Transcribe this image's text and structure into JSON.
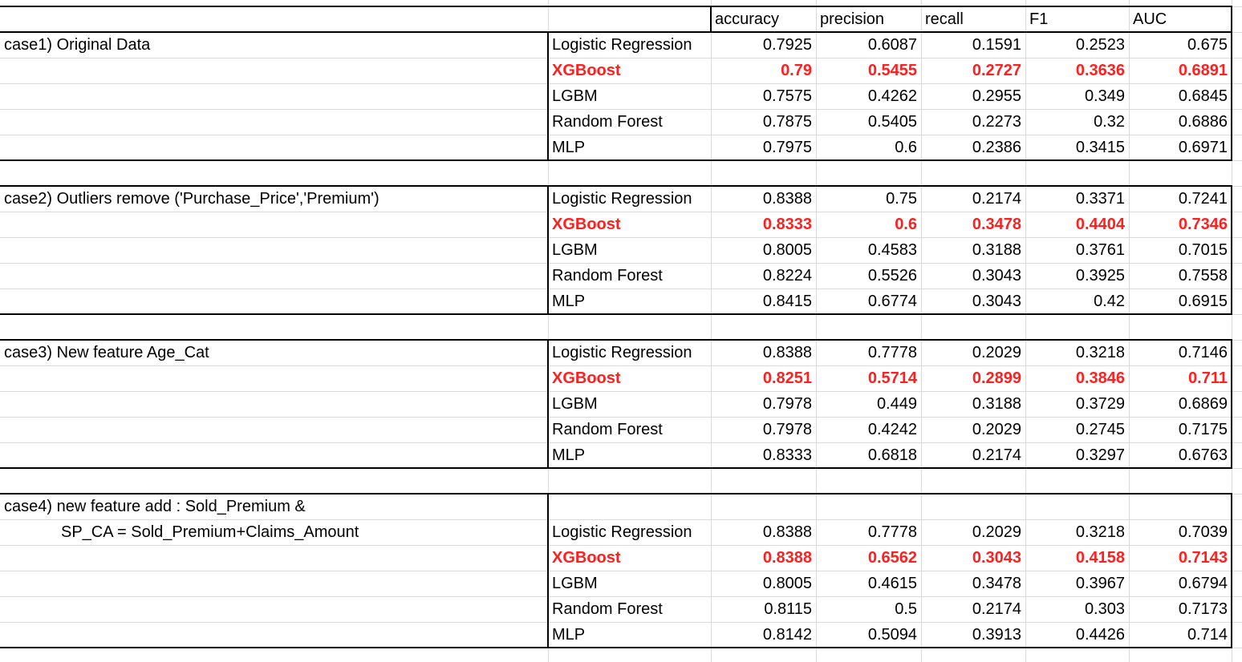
{
  "headers": [
    "",
    "",
    "accuracy",
    "precision",
    "recall",
    "F1",
    "AUC"
  ],
  "groups": [
    {
      "case_lines": [
        "case1) Original Data"
      ],
      "rows": [
        {
          "model": "Logistic Regression",
          "values": [
            "0.7925",
            "0.6087",
            "0.1591",
            "0.2523",
            "0.675"
          ],
          "highlight": false
        },
        {
          "model": "XGBoost",
          "values": [
            "0.79",
            "0.5455",
            "0.2727",
            "0.3636",
            "0.6891"
          ],
          "highlight": true
        },
        {
          "model": "LGBM",
          "values": [
            "0.7575",
            "0.4262",
            "0.2955",
            "0.349",
            "0.6845"
          ],
          "highlight": false
        },
        {
          "model": "Random Forest",
          "values": [
            "0.7875",
            "0.5405",
            "0.2273",
            "0.32",
            "0.6886"
          ],
          "highlight": false
        },
        {
          "model": "MLP",
          "values": [
            "0.7975",
            "0.6",
            "0.2386",
            "0.3415",
            "0.6971"
          ],
          "highlight": false
        }
      ]
    },
    {
      "case_lines": [
        "case2) Outliers remove ('Purchase_Price','Premium')"
      ],
      "rows": [
        {
          "model": "Logistic Regression",
          "values": [
            "0.8388",
            "0.75",
            "0.2174",
            "0.3371",
            "0.7241"
          ],
          "highlight": false
        },
        {
          "model": "XGBoost",
          "values": [
            "0.8333",
            "0.6",
            "0.3478",
            "0.4404",
            "0.7346"
          ],
          "highlight": true
        },
        {
          "model": "LGBM",
          "values": [
            "0.8005",
            "0.4583",
            "0.3188",
            "0.3761",
            "0.7015"
          ],
          "highlight": false
        },
        {
          "model": "Random Forest",
          "values": [
            "0.8224",
            "0.5526",
            "0.3043",
            "0.3925",
            "0.7558"
          ],
          "highlight": false
        },
        {
          "model": "MLP",
          "values": [
            "0.8415",
            "0.6774",
            "0.3043",
            "0.42",
            "0.6915"
          ],
          "highlight": false
        }
      ]
    },
    {
      "case_lines": [
        "case3) New feature Age_Cat"
      ],
      "rows": [
        {
          "model": "Logistic Regression",
          "values": [
            "0.8388",
            "0.7778",
            "0.2029",
            "0.3218",
            "0.7146"
          ],
          "highlight": false
        },
        {
          "model": "XGBoost",
          "values": [
            "0.8251",
            "0.5714",
            "0.2899",
            "0.3846",
            "0.711"
          ],
          "highlight": true
        },
        {
          "model": "LGBM",
          "values": [
            "0.7978",
            "0.449",
            "0.3188",
            "0.3729",
            "0.6869"
          ],
          "highlight": false
        },
        {
          "model": "Random Forest",
          "values": [
            "0.7978",
            "0.4242",
            "0.2029",
            "0.2745",
            "0.7175"
          ],
          "highlight": false
        },
        {
          "model": "MLP",
          "values": [
            "0.8333",
            "0.6818",
            "0.2174",
            "0.3297",
            "0.6763"
          ],
          "highlight": false
        }
      ]
    },
    {
      "case_lines": [
        "case4) new feature add : Sold_Premium &",
        "SP_CA = Sold_Premium+Claims_Amount"
      ],
      "rows": [
        {
          "model": "Logistic Regression",
          "values": [
            "0.8388",
            "0.7778",
            "0.2029",
            "0.3218",
            "0.7039"
          ],
          "highlight": false
        },
        {
          "model": "XGBoost",
          "values": [
            "0.8388",
            "0.6562",
            "0.3043",
            "0.4158",
            "0.7143"
          ],
          "highlight": true
        },
        {
          "model": "LGBM",
          "values": [
            "0.8005",
            "0.4615",
            "0.3478",
            "0.3967",
            "0.6794"
          ],
          "highlight": false
        },
        {
          "model": "Random Forest",
          "values": [
            "0.8115",
            "0.5",
            "0.2174",
            "0.303",
            "0.7173"
          ],
          "highlight": false
        },
        {
          "model": "MLP",
          "values": [
            "0.8142",
            "0.5094",
            "0.3913",
            "0.4426",
            "0.714"
          ],
          "highlight": false
        }
      ]
    }
  ],
  "colors": {
    "highlight": "#ff1f1f",
    "grid": "#d9d9d9",
    "border": "#000000"
  }
}
